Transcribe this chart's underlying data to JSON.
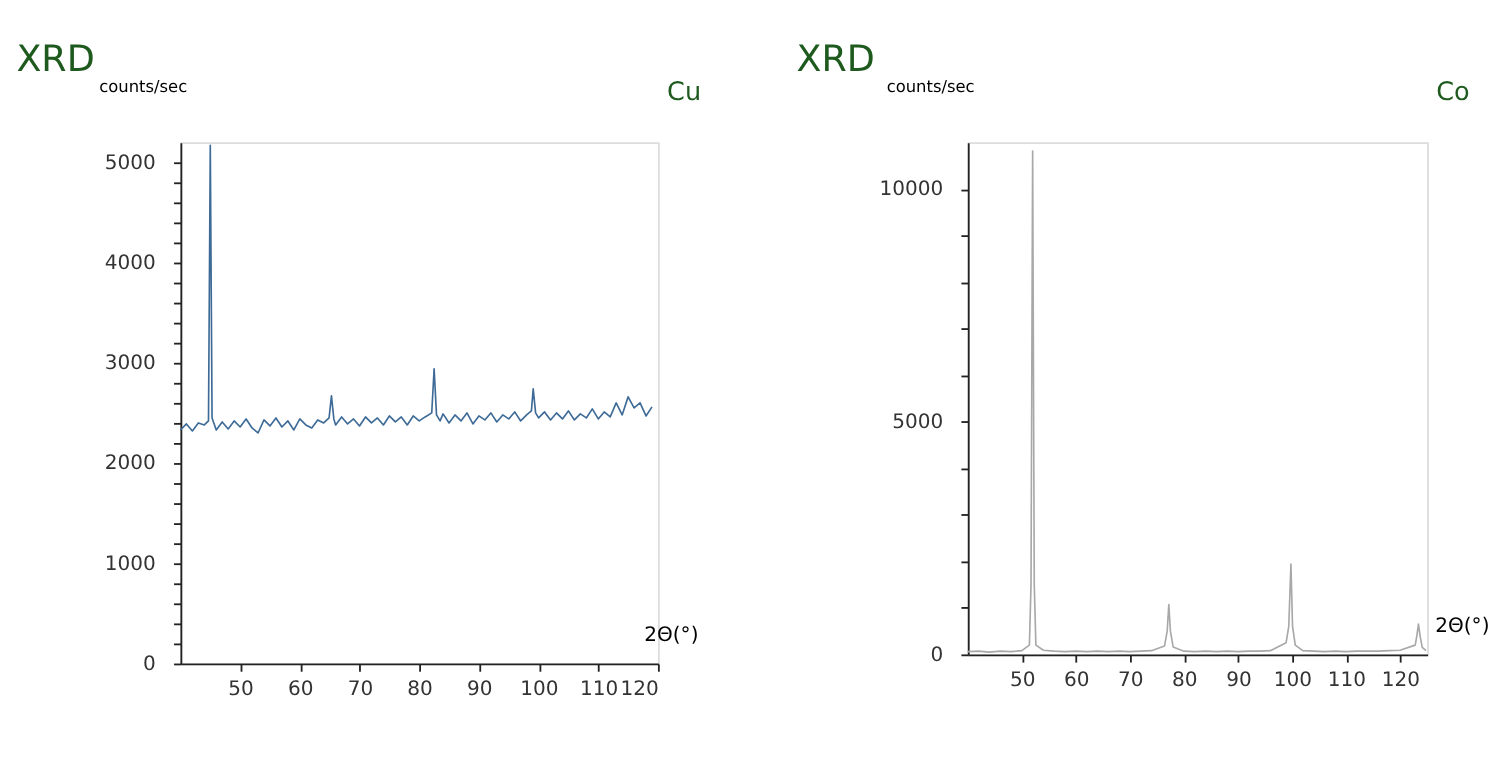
{
  "chart_data": [
    {
      "type": "line",
      "title": "XRD",
      "ylabel": "counts/sec",
      "xlabel": "2Θ(°)",
      "annotations": [
        "Cu"
      ],
      "x": [
        40,
        41,
        42,
        43,
        44,
        44.7,
        45.0,
        45.3,
        46,
        47,
        48,
        49,
        50,
        51,
        52,
        53,
        54,
        55,
        56,
        57,
        58,
        59,
        60,
        61,
        62,
        63,
        64,
        64.9,
        65.3,
        65.7,
        66,
        67,
        68,
        69,
        70,
        71,
        72,
        73,
        74,
        75,
        76,
        77,
        78,
        79,
        80,
        81,
        82.1,
        82.5,
        82.9,
        83.5,
        84,
        85,
        86,
        87,
        88,
        89,
        90,
        91,
        92,
        93,
        94,
        95,
        96,
        97,
        98,
        98.8,
        99.1,
        99.5,
        100,
        101,
        102,
        103,
        104,
        105,
        106,
        107,
        108,
        109,
        110,
        111,
        112,
        113,
        114,
        115,
        116,
        117,
        118,
        119
      ],
      "series": [
        {
          "color": "#3d6a96",
          "values": [
            2330,
            2390,
            2320,
            2400,
            2380,
            2420,
            5170,
            2450,
            2330,
            2410,
            2340,
            2420,
            2360,
            2440,
            2350,
            2300,
            2430,
            2370,
            2450,
            2360,
            2420,
            2330,
            2440,
            2380,
            2350,
            2430,
            2400,
            2450,
            2670,
            2440,
            2380,
            2460,
            2390,
            2440,
            2370,
            2460,
            2400,
            2450,
            2380,
            2470,
            2410,
            2460,
            2380,
            2470,
            2420,
            2460,
            2500,
            2940,
            2480,
            2420,
            2490,
            2400,
            2480,
            2420,
            2500,
            2390,
            2470,
            2430,
            2500,
            2410,
            2480,
            2440,
            2510,
            2420,
            2480,
            2520,
            2740,
            2500,
            2450,
            2510,
            2430,
            2500,
            2440,
            2520,
            2430,
            2490,
            2450,
            2540,
            2440,
            2510,
            2460,
            2600,
            2480,
            2660,
            2550,
            2600,
            2470,
            2560
          ]
        }
      ],
      "xlim": [
        40,
        120
      ],
      "ylim": [
        0,
        5200
      ],
      "xticks": [
        50,
        60,
        70,
        80,
        90,
        100,
        110,
        120
      ],
      "yticks": [
        0,
        {
          "value": 200,
          "label": null
        },
        {
          "value": 400,
          "label": null
        },
        {
          "value": 600,
          "label": null
        },
        {
          "value": 800,
          "label": null
        },
        1000,
        {
          "value": 1200,
          "label": null
        },
        {
          "value": 1400,
          "label": null
        },
        {
          "value": 1600,
          "label": null
        },
        {
          "value": 1800,
          "label": null
        },
        2000,
        {
          "value": 2200,
          "label": null
        },
        {
          "value": 2400,
          "label": null
        },
        {
          "value": 2600,
          "label": null
        },
        {
          "value": 2800,
          "label": null
        },
        3000,
        {
          "value": 3200,
          "label": null
        },
        {
          "value": 3400,
          "label": null
        },
        {
          "value": 3600,
          "label": null
        },
        {
          "value": 3800,
          "label": null
        },
        4000,
        {
          "value": 4200,
          "label": null
        },
        {
          "value": 4400,
          "label": null
        },
        {
          "value": 4600,
          "label": null
        },
        {
          "value": 4800,
          "label": null
        },
        5000
      ],
      "grid": false
    },
    {
      "type": "line",
      "title": "XRD",
      "ylabel": "counts/sec",
      "xlabel": "2Θ(°)",
      "annotations": [
        "Co"
      ],
      "x": [
        40,
        42,
        44,
        46,
        48,
        50,
        51.4,
        51.7,
        52.0,
        52.3,
        52.6,
        54,
        56,
        58,
        60,
        62,
        64,
        66,
        68,
        70,
        72,
        74,
        76.4,
        76.9,
        77.2,
        77.5,
        78,
        80,
        82,
        84,
        86,
        88,
        90,
        92,
        94,
        96,
        98.9,
        99.4,
        99.8,
        100.1,
        100.6,
        102,
        104,
        106,
        108,
        110,
        112,
        114,
        116,
        118,
        120,
        122.8,
        123.1,
        123.4,
        123.7,
        124.1,
        124.8
      ],
      "series": [
        {
          "color": "#a8a8a8",
          "values": [
            60,
            70,
            50,
            70,
            60,
            80,
            200,
            1500,
            10810,
            1500,
            200,
            90,
            70,
            60,
            70,
            60,
            70,
            60,
            70,
            60,
            70,
            80,
            180,
            500,
            1070,
            500,
            160,
            70,
            60,
            70,
            60,
            70,
            60,
            70,
            70,
            80,
            250,
            600,
            1940,
            600,
            200,
            80,
            70,
            60,
            70,
            60,
            70,
            70,
            70,
            80,
            90,
            200,
            400,
            650,
            400,
            150,
            80
          ]
        }
      ],
      "xlim": [
        40,
        125
      ],
      "ylim": [
        0,
        11000
      ],
      "xticks": [
        50,
        60,
        70,
        80,
        90,
        100,
        110,
        120
      ],
      "yticks": [
        0,
        {
          "value": 1000,
          "label": null
        },
        {
          "value": 2000,
          "label": null
        },
        {
          "value": 3000,
          "label": null
        },
        {
          "value": 4000,
          "label": null
        },
        5000,
        {
          "value": 6000,
          "label": null
        },
        {
          "value": 7000,
          "label": null
        },
        {
          "value": 8000,
          "label": null
        },
        {
          "value": 9000,
          "label": null
        },
        10000
      ],
      "grid": false
    }
  ]
}
